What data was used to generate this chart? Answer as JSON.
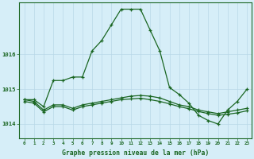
{
  "title": "Graphe pression niveau de la mer (hPa)",
  "background_color": "#d6eef8",
  "grid_color": "#b8d8e8",
  "line_color": "#1a6622",
  "x_labels": [
    "0",
    "1",
    "2",
    "3",
    "4",
    "5",
    "6",
    "7",
    "8",
    "9",
    "10",
    "11",
    "12",
    "13",
    "14",
    "15",
    "16",
    "17",
    "18",
    "19",
    "20",
    "21",
    "22",
    "23"
  ],
  "ylim": [
    1013.6,
    1017.5
  ],
  "yticks": [
    1014,
    1015,
    1016
  ],
  "series1": [
    1014.7,
    1014.7,
    1014.5,
    1015.25,
    1015.25,
    1015.35,
    1015.35,
    1016.1,
    1016.4,
    1016.85,
    1017.3,
    1017.3,
    1017.3,
    1016.7,
    1016.1,
    1015.05,
    1014.85,
    1014.6,
    1014.25,
    1014.1,
    1014.0,
    1014.4,
    1014.65,
    1015.0
  ],
  "series2": [
    1014.7,
    1014.65,
    1014.4,
    1014.55,
    1014.55,
    1014.45,
    1014.55,
    1014.6,
    1014.65,
    1014.7,
    1014.75,
    1014.8,
    1014.82,
    1014.8,
    1014.75,
    1014.65,
    1014.55,
    1014.5,
    1014.4,
    1014.35,
    1014.3,
    1014.35,
    1014.4,
    1014.45
  ],
  "series3": [
    1014.65,
    1014.6,
    1014.35,
    1014.5,
    1014.5,
    1014.4,
    1014.5,
    1014.55,
    1014.6,
    1014.65,
    1014.7,
    1014.72,
    1014.74,
    1014.7,
    1014.65,
    1014.58,
    1014.5,
    1014.44,
    1014.36,
    1014.3,
    1014.25,
    1014.28,
    1014.32,
    1014.38
  ]
}
